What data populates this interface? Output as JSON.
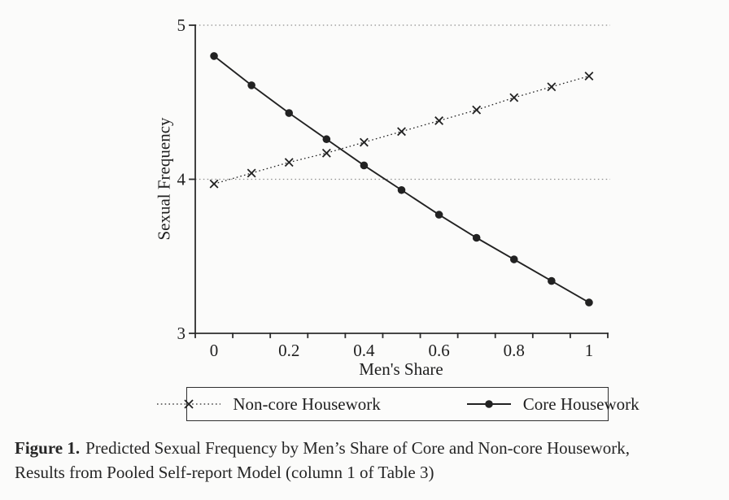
{
  "figure": {
    "caption": {
      "label": "Figure 1.",
      "line1": "Predicted Sexual Frequency by Men’s Share of Core and Non-core Housework,",
      "line2": "Results from Pooled Self-report Model (column 1 of Table 3)"
    }
  },
  "chart_data": {
    "type": "line",
    "title": "",
    "xlabel": "Men's Share",
    "ylabel": "Sexual Frequency",
    "x": [
      0,
      0.1,
      0.2,
      0.3,
      0.4,
      0.5,
      0.6,
      0.7,
      0.8,
      0.9,
      1.0
    ],
    "series": [
      {
        "name": "Non-core Housework",
        "marker": "x",
        "line": "dotted",
        "values": [
          3.97,
          4.04,
          4.11,
          4.17,
          4.24,
          4.31,
          4.38,
          4.45,
          4.53,
          4.6,
          4.67
        ]
      },
      {
        "name": "Core Housework",
        "marker": "circle",
        "line": "solid",
        "values": [
          4.8,
          4.61,
          4.43,
          4.26,
          4.09,
          3.93,
          3.77,
          3.62,
          3.48,
          3.34,
          3.2
        ]
      }
    ],
    "ylim": [
      3,
      5
    ],
    "yticks": [
      "3",
      "4",
      "5"
    ],
    "xticks": [
      {
        "label": "0",
        "index": 0
      },
      {
        "label": "0.2",
        "index": 2
      },
      {
        "label": "0.4",
        "index": 4
      },
      {
        "label": "0.6",
        "index": 6
      },
      {
        "label": "0.8",
        "index": 8
      },
      {
        "label": "1",
        "index": 10
      }
    ],
    "gridlines_y": [
      4,
      5
    ],
    "grid_on": true,
    "grid_style": "dotted",
    "legend_position": "bottom-boxed",
    "colors": {
      "series": "#222222",
      "axis": "#2c2c2c",
      "grid": "#8f8f8f",
      "text": "#1f1f1f"
    }
  }
}
